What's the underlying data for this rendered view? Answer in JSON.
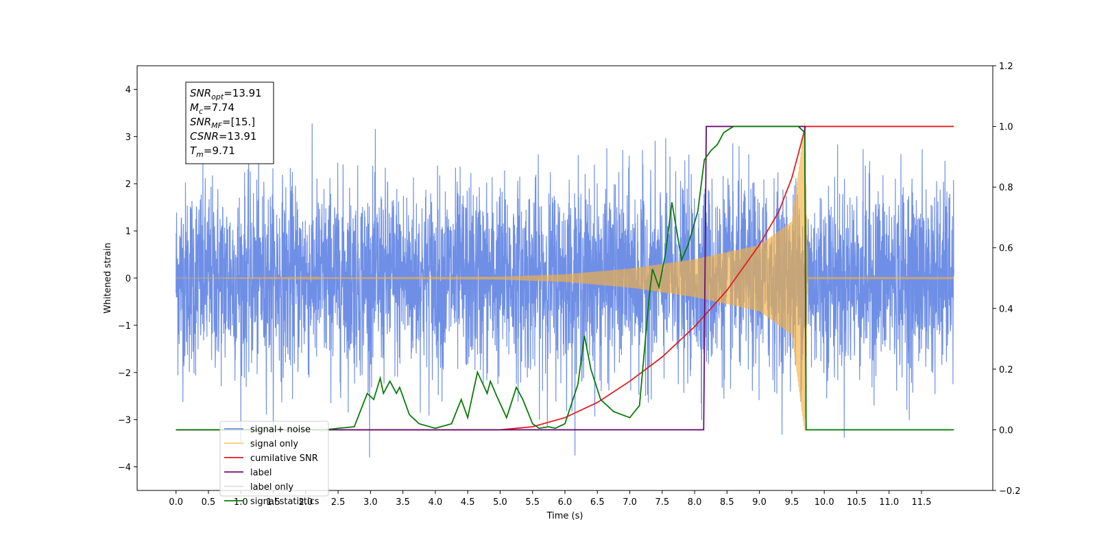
{
  "chart_data": {
    "type": "line",
    "title": "",
    "xlabel": "Time (s)",
    "ylabel": "Whitened strain",
    "xlim": [
      -0.6,
      12.6
    ],
    "ylim": [
      -4.5,
      4.5
    ],
    "y2lim": [
      -0.2,
      1.2
    ],
    "x_ticks": [
      "0.0",
      "0.5",
      "1.0",
      "1.5",
      "2.0",
      "2.5",
      "3.0",
      "3.5",
      "4.0",
      "4.5",
      "5.0",
      "5.5",
      "6.0",
      "6.5",
      "7.0",
      "7.5",
      "8.0",
      "8.5",
      "9.0",
      "9.5",
      "10.0",
      "10.5",
      "11.0",
      "11.5"
    ],
    "y_ticks": [
      "−4",
      "−3",
      "−2",
      "−1",
      "0",
      "1",
      "2",
      "3",
      "4"
    ],
    "y2_ticks": [
      "−0.2",
      "0.0",
      "0.2",
      "0.4",
      "0.6",
      "0.8",
      "1.0",
      "1.2"
    ],
    "legend_placement": "lower-left",
    "grid": false,
    "series": [
      {
        "name": "signal+ noise",
        "axis": "left",
        "color": "#6f8fe6",
        "description_kind": "noise",
        "x_range": [
          0.0,
          12.0
        ],
        "amplitude_std": 1.0
      },
      {
        "name": "signal only",
        "axis": "left",
        "color": "#f5b041",
        "description_kind": "chirp",
        "x_range": [
          0.0,
          12.0
        ],
        "envelope": {
          "x": [
            0.0,
            5.0,
            6.0,
            7.0,
            8.0,
            9.0,
            9.5,
            9.7,
            9.75,
            12.0
          ],
          "y": [
            0.0,
            0.03,
            0.08,
            0.2,
            0.4,
            0.7,
            1.2,
            3.3,
            0.02,
            0.02
          ]
        }
      },
      {
        "name": "cumilative SNR",
        "axis": "right",
        "color": "#e31a1c",
        "x": [
          0.0,
          5.0,
          5.5,
          6.0,
          6.5,
          7.0,
          7.5,
          8.0,
          8.5,
          9.0,
          9.3,
          9.5,
          9.6,
          9.7,
          9.71,
          12.0
        ],
        "y": [
          0.0,
          0.0,
          0.01,
          0.04,
          0.09,
          0.16,
          0.24,
          0.34,
          0.46,
          0.61,
          0.72,
          0.83,
          0.91,
          0.99,
          1.0,
          1.0
        ]
      },
      {
        "name": "label",
        "axis": "right",
        "color": "#6a0d73",
        "x": [
          0.0,
          8.14,
          8.18,
          9.7,
          9.72
        ],
        "y": [
          0.0,
          0.0,
          1.0,
          1.0,
          0.0
        ]
      },
      {
        "name": "label only",
        "axis": "right",
        "color": "#e0e0e0",
        "x": [],
        "y": []
      },
      {
        "name": "signal statistics",
        "axis": "right",
        "color": "#087a08",
        "x": [
          0.0,
          2.3,
          2.5,
          2.75,
          2.95,
          3.05,
          3.15,
          3.2,
          3.3,
          3.4,
          3.45,
          3.5,
          3.6,
          3.75,
          4.0,
          4.25,
          4.4,
          4.5,
          4.65,
          4.8,
          4.85,
          4.95,
          5.1,
          5.25,
          5.35,
          5.5,
          5.6,
          5.75,
          5.85,
          6.0,
          6.2,
          6.3,
          6.4,
          6.55,
          6.75,
          7.0,
          7.15,
          7.3,
          7.35,
          7.45,
          7.55,
          7.65,
          7.8,
          7.9,
          8.05,
          8.15,
          8.25,
          8.35,
          8.45,
          8.6,
          9.6,
          9.7,
          9.72,
          12.0
        ],
        "y": [
          0.0,
          0.0,
          0.005,
          0.01,
          0.12,
          0.1,
          0.17,
          0.12,
          0.16,
          0.12,
          0.14,
          0.11,
          0.05,
          0.02,
          0.005,
          0.02,
          0.1,
          0.04,
          0.19,
          0.12,
          0.16,
          0.11,
          0.04,
          0.14,
          0.1,
          0.02,
          0.005,
          0.01,
          0.005,
          0.02,
          0.15,
          0.31,
          0.2,
          0.1,
          0.06,
          0.04,
          0.08,
          0.44,
          0.53,
          0.47,
          0.58,
          0.75,
          0.56,
          0.61,
          0.72,
          0.89,
          0.92,
          0.94,
          0.98,
          1.0,
          1.0,
          0.98,
          0.0,
          0.0
        ]
      }
    ],
    "annotation": {
      "lines": [
        {
          "var": "SNR",
          "sub": "opt",
          "value": "=13.91"
        },
        {
          "var": "M",
          "sub": "c",
          "value": "=7.74"
        },
        {
          "var": "SNR",
          "sub": "MF",
          "value": "=[15.]"
        },
        {
          "var": "CSNR",
          "sub": "",
          "value": "=13.91"
        },
        {
          "var": "T",
          "sub": "m",
          "value": "=9.71"
        }
      ]
    }
  }
}
